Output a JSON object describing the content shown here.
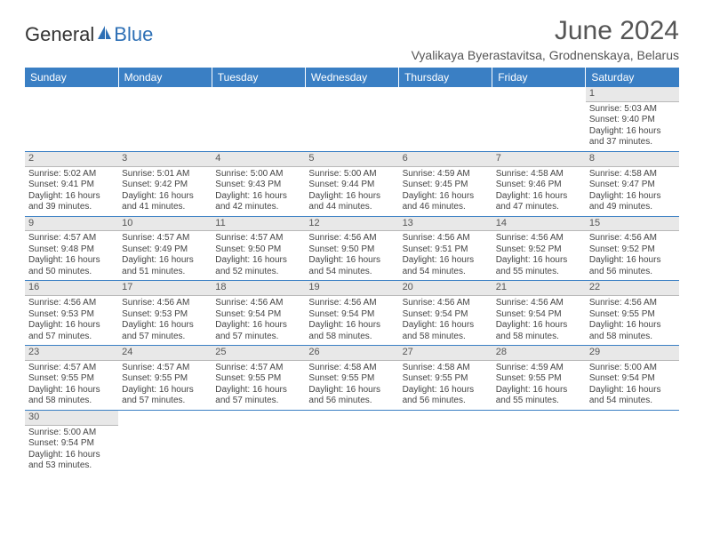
{
  "logo": {
    "general": "General",
    "blue": "Blue"
  },
  "title": "June 2024",
  "subtitle": "Vyalikaya Byerastavitsa, Grodnenskaya, Belarus",
  "colors": {
    "header_bg": "#3a7fc4",
    "header_text": "#ffffff",
    "daynum_bg": "#e8e8e8",
    "daynum_border": "#b8b8b8",
    "cell_border": "#3a7fc4",
    "text": "#444444",
    "title_color": "#555555",
    "logo_blue": "#2d6fb5"
  },
  "font_sizes": {
    "title": 30,
    "subtitle": 14,
    "weekday": 12,
    "daynum": 11,
    "detail": 10
  },
  "weekdays": [
    "Sunday",
    "Monday",
    "Tuesday",
    "Wednesday",
    "Thursday",
    "Friday",
    "Saturday"
  ],
  "weeks": [
    [
      null,
      null,
      null,
      null,
      null,
      null,
      {
        "n": "1",
        "sr": "Sunrise: 5:03 AM",
        "ss": "Sunset: 9:40 PM",
        "d1": "Daylight: 16 hours",
        "d2": "and 37 minutes."
      }
    ],
    [
      {
        "n": "2",
        "sr": "Sunrise: 5:02 AM",
        "ss": "Sunset: 9:41 PM",
        "d1": "Daylight: 16 hours",
        "d2": "and 39 minutes."
      },
      {
        "n": "3",
        "sr": "Sunrise: 5:01 AM",
        "ss": "Sunset: 9:42 PM",
        "d1": "Daylight: 16 hours",
        "d2": "and 41 minutes."
      },
      {
        "n": "4",
        "sr": "Sunrise: 5:00 AM",
        "ss": "Sunset: 9:43 PM",
        "d1": "Daylight: 16 hours",
        "d2": "and 42 minutes."
      },
      {
        "n": "5",
        "sr": "Sunrise: 5:00 AM",
        "ss": "Sunset: 9:44 PM",
        "d1": "Daylight: 16 hours",
        "d2": "and 44 minutes."
      },
      {
        "n": "6",
        "sr": "Sunrise: 4:59 AM",
        "ss": "Sunset: 9:45 PM",
        "d1": "Daylight: 16 hours",
        "d2": "and 46 minutes."
      },
      {
        "n": "7",
        "sr": "Sunrise: 4:58 AM",
        "ss": "Sunset: 9:46 PM",
        "d1": "Daylight: 16 hours",
        "d2": "and 47 minutes."
      },
      {
        "n": "8",
        "sr": "Sunrise: 4:58 AM",
        "ss": "Sunset: 9:47 PM",
        "d1": "Daylight: 16 hours",
        "d2": "and 49 minutes."
      }
    ],
    [
      {
        "n": "9",
        "sr": "Sunrise: 4:57 AM",
        "ss": "Sunset: 9:48 PM",
        "d1": "Daylight: 16 hours",
        "d2": "and 50 minutes."
      },
      {
        "n": "10",
        "sr": "Sunrise: 4:57 AM",
        "ss": "Sunset: 9:49 PM",
        "d1": "Daylight: 16 hours",
        "d2": "and 51 minutes."
      },
      {
        "n": "11",
        "sr": "Sunrise: 4:57 AM",
        "ss": "Sunset: 9:50 PM",
        "d1": "Daylight: 16 hours",
        "d2": "and 52 minutes."
      },
      {
        "n": "12",
        "sr": "Sunrise: 4:56 AM",
        "ss": "Sunset: 9:50 PM",
        "d1": "Daylight: 16 hours",
        "d2": "and 54 minutes."
      },
      {
        "n": "13",
        "sr": "Sunrise: 4:56 AM",
        "ss": "Sunset: 9:51 PM",
        "d1": "Daylight: 16 hours",
        "d2": "and 54 minutes."
      },
      {
        "n": "14",
        "sr": "Sunrise: 4:56 AM",
        "ss": "Sunset: 9:52 PM",
        "d1": "Daylight: 16 hours",
        "d2": "and 55 minutes."
      },
      {
        "n": "15",
        "sr": "Sunrise: 4:56 AM",
        "ss": "Sunset: 9:52 PM",
        "d1": "Daylight: 16 hours",
        "d2": "and 56 minutes."
      }
    ],
    [
      {
        "n": "16",
        "sr": "Sunrise: 4:56 AM",
        "ss": "Sunset: 9:53 PM",
        "d1": "Daylight: 16 hours",
        "d2": "and 57 minutes."
      },
      {
        "n": "17",
        "sr": "Sunrise: 4:56 AM",
        "ss": "Sunset: 9:53 PM",
        "d1": "Daylight: 16 hours",
        "d2": "and 57 minutes."
      },
      {
        "n": "18",
        "sr": "Sunrise: 4:56 AM",
        "ss": "Sunset: 9:54 PM",
        "d1": "Daylight: 16 hours",
        "d2": "and 57 minutes."
      },
      {
        "n": "19",
        "sr": "Sunrise: 4:56 AM",
        "ss": "Sunset: 9:54 PM",
        "d1": "Daylight: 16 hours",
        "d2": "and 58 minutes."
      },
      {
        "n": "20",
        "sr": "Sunrise: 4:56 AM",
        "ss": "Sunset: 9:54 PM",
        "d1": "Daylight: 16 hours",
        "d2": "and 58 minutes."
      },
      {
        "n": "21",
        "sr": "Sunrise: 4:56 AM",
        "ss": "Sunset: 9:54 PM",
        "d1": "Daylight: 16 hours",
        "d2": "and 58 minutes."
      },
      {
        "n": "22",
        "sr": "Sunrise: 4:56 AM",
        "ss": "Sunset: 9:55 PM",
        "d1": "Daylight: 16 hours",
        "d2": "and 58 minutes."
      }
    ],
    [
      {
        "n": "23",
        "sr": "Sunrise: 4:57 AM",
        "ss": "Sunset: 9:55 PM",
        "d1": "Daylight: 16 hours",
        "d2": "and 58 minutes."
      },
      {
        "n": "24",
        "sr": "Sunrise: 4:57 AM",
        "ss": "Sunset: 9:55 PM",
        "d1": "Daylight: 16 hours",
        "d2": "and 57 minutes."
      },
      {
        "n": "25",
        "sr": "Sunrise: 4:57 AM",
        "ss": "Sunset: 9:55 PM",
        "d1": "Daylight: 16 hours",
        "d2": "and 57 minutes."
      },
      {
        "n": "26",
        "sr": "Sunrise: 4:58 AM",
        "ss": "Sunset: 9:55 PM",
        "d1": "Daylight: 16 hours",
        "d2": "and 56 minutes."
      },
      {
        "n": "27",
        "sr": "Sunrise: 4:58 AM",
        "ss": "Sunset: 9:55 PM",
        "d1": "Daylight: 16 hours",
        "d2": "and 56 minutes."
      },
      {
        "n": "28",
        "sr": "Sunrise: 4:59 AM",
        "ss": "Sunset: 9:55 PM",
        "d1": "Daylight: 16 hours",
        "d2": "and 55 minutes."
      },
      {
        "n": "29",
        "sr": "Sunrise: 5:00 AM",
        "ss": "Sunset: 9:54 PM",
        "d1": "Daylight: 16 hours",
        "d2": "and 54 minutes."
      }
    ],
    [
      {
        "n": "30",
        "sr": "Sunrise: 5:00 AM",
        "ss": "Sunset: 9:54 PM",
        "d1": "Daylight: 16 hours",
        "d2": "and 53 minutes."
      },
      null,
      null,
      null,
      null,
      null,
      null
    ]
  ]
}
